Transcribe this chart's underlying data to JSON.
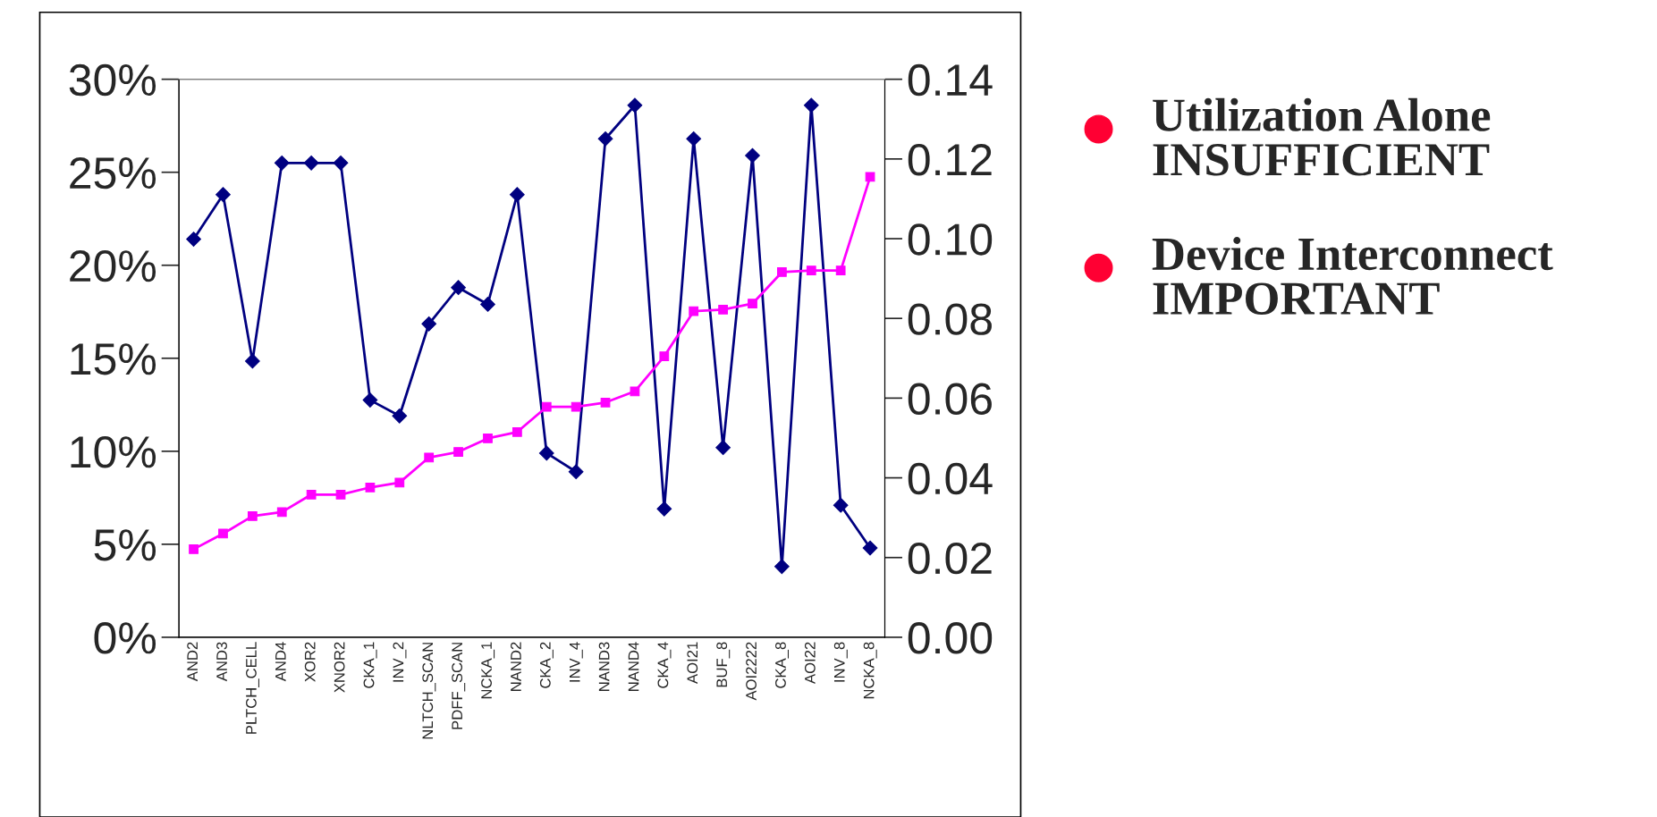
{
  "chart_data": {
    "type": "line",
    "categories": [
      "AND2",
      "AND3",
      "PLTCH_CELL",
      "AND4",
      "XOR2",
      "XNOR2",
      "CKA_1",
      "INV_2",
      "NLTCH_SCAN",
      "PDFF_SCAN",
      "NCKA_1",
      "NAND2",
      "CKA_2",
      "INV_4",
      "NAND3",
      "NAND4",
      "CKA_4",
      "AOI21",
      "BUF_8",
      "AOI2222",
      "CKA_8",
      "AOI22",
      "INV_8",
      "NCKA_8"
    ],
    "series": [
      {
        "color": "#000080",
        "marker": "diamond",
        "values": [
          21.4,
          23.8,
          14.85,
          25.5,
          25.5,
          25.5,
          12.75,
          11.9,
          16.85,
          18.8,
          17.9,
          23.8,
          9.9,
          8.9,
          26.8,
          28.6,
          6.9,
          26.8,
          10.2,
          25.9,
          3.8,
          28.6,
          7.1,
          4.8
        ]
      },
      {
        "color": "#ff00ff",
        "marker": "square",
        "axis": "y2",
        "values": [
          0.0221,
          0.026,
          0.0304,
          0.0314,
          0.0358,
          0.0358,
          0.0376,
          0.0388,
          0.0451,
          0.0465,
          0.0499,
          0.0515,
          0.0578,
          0.0578,
          0.0589,
          0.0617,
          0.0705,
          0.0818,
          0.0822,
          0.0837,
          0.0916,
          0.092,
          0.092,
          0.1155
        ]
      }
    ],
    "ylim": [
      0,
      30
    ],
    "yticks": [
      {
        "value": 0,
        "label": "0%"
      },
      {
        "value": 5,
        "label": "5%"
      },
      {
        "value": 10,
        "label": "10%"
      },
      {
        "value": 15,
        "label": "15%"
      },
      {
        "value": 20,
        "label": "20%"
      },
      {
        "value": 25,
        "label": "25%"
      },
      {
        "value": 30,
        "label": "30%"
      }
    ],
    "y2lim": [
      0,
      0.14
    ],
    "y2ticks": [
      {
        "value": 0,
        "label": "0.00"
      },
      {
        "value": 0.02,
        "label": "0.02"
      },
      {
        "value": 0.04,
        "label": "0.04"
      },
      {
        "value": 0.06,
        "label": "0.06"
      },
      {
        "value": 0.08,
        "label": "0.08"
      },
      {
        "value": 0.1,
        "label": "0.10"
      },
      {
        "value": 0.12,
        "label": "0.12"
      },
      {
        "value": 0.14,
        "label": "0.14"
      }
    ],
    "annotations": [
      "Utilization Alone\nINSUFFICIENT",
      "Device Interconnect\nIMPORTANT"
    ],
    "grid": false
  }
}
